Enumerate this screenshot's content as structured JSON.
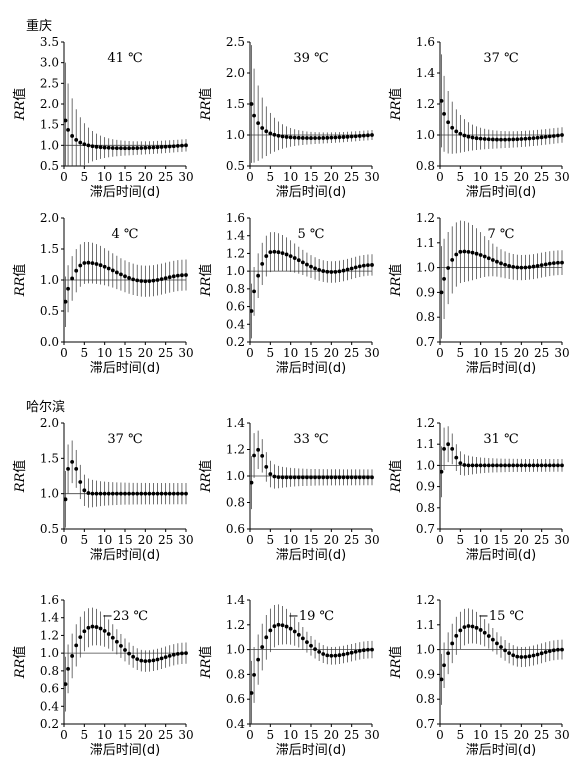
{
  "cities": [
    {
      "name": "重庆",
      "panels": [
        {
          "title": "41 ℃",
          "ylim": [
            0.5,
            3.5
          ],
          "yticks": [
            "0.5",
            "1.0",
            "1.5",
            "2.0",
            "2.5",
            "3.0",
            "3.5"
          ],
          "yvals": [
            0.5,
            1.0,
            1.5,
            2.0,
            2.5,
            3.0,
            3.5
          ],
          "shape": "heat",
          "peak": 1.6,
          "bump": 0,
          "trough": -0.07,
          "ci0": 1.4,
          "ciEnd": 0.15,
          "end": 1.0
        },
        {
          "title": "39 ℃",
          "ylim": [
            0.5,
            2.5
          ],
          "yticks": [
            "0.5",
            "1.0",
            "1.5",
            "2.0",
            "2.5"
          ],
          "yvals": [
            0.5,
            1.0,
            1.5,
            2.0,
            2.5
          ],
          "shape": "heat",
          "peak": 1.5,
          "bump": 0,
          "trough": -0.05,
          "ci0": 0.95,
          "ciEnd": 0.08,
          "end": 1.0
        },
        {
          "title": "37 ℃",
          "ylim": [
            0.8,
            1.6
          ],
          "yticks": [
            "0.8",
            "1.0",
            "1.2",
            "1.4",
            "1.6"
          ],
          "yvals": [
            0.8,
            1.0,
            1.2,
            1.4,
            1.6
          ],
          "shape": "heat",
          "peak": 1.22,
          "bump": 0,
          "trough": -0.03,
          "ci0": 0.3,
          "ciEnd": 0.05,
          "end": 1.0
        },
        {
          "title": "4 ℃",
          "ylim": [
            0.0,
            2.0
          ],
          "yticks": [
            "0.0",
            "0.5",
            "1.0",
            "1.5",
            "2.0"
          ],
          "yvals": [
            0.0,
            0.5,
            1.0,
            1.5,
            2.0
          ],
          "shape": "cold",
          "peak": 0.65,
          "bump": 1.28,
          "trough": 0.98,
          "ci0": 0.4,
          "ciEnd": 0.25,
          "end": 1.08
        },
        {
          "title": "5 ℃",
          "ylim": [
            0.2,
            1.6
          ],
          "yticks": [
            "0.2",
            "0.4",
            "0.6",
            "0.8",
            "1.0",
            "1.2",
            "1.4",
            "1.6"
          ],
          "yvals": [
            0.2,
            0.4,
            0.6,
            0.8,
            1.0,
            1.2,
            1.4,
            1.6
          ],
          "shape": "cold",
          "peak": 0.55,
          "bump": 1.22,
          "trough": 0.99,
          "ci0": 0.3,
          "ciEnd": 0.12,
          "end": 1.07
        },
        {
          "title": "7 ℃",
          "ylim": [
            0.7,
            1.2
          ],
          "yticks": [
            "0.7",
            "0.8",
            "0.9",
            "1.0",
            "1.1",
            "1.2"
          ],
          "yvals": [
            0.7,
            0.8,
            0.9,
            1.0,
            1.1,
            1.2
          ],
          "shape": "cold",
          "peak": 0.9,
          "bump": 1.065,
          "trough": 1.0,
          "ci0": 0.18,
          "ciEnd": 0.05,
          "end": 1.02
        }
      ]
    },
    {
      "name": "哈尔滨",
      "panels": [
        {
          "title": "37 ℃",
          "ylim": [
            0.5,
            2.0
          ],
          "yticks": [
            "0.5",
            "1.0",
            "1.5",
            "2.0"
          ],
          "yvals": [
            0.5,
            1.0,
            1.5,
            2.0
          ],
          "shape": "harbin-heat",
          "peak": 1.45,
          "bump": 0,
          "trough": 0,
          "ci0": 0.4,
          "ciEnd": 0.15,
          "end": 1.0
        },
        {
          "title": "33 ℃",
          "ylim": [
            0.6,
            1.4
          ],
          "yticks": [
            "0.6",
            "0.8",
            "1.0",
            "1.2",
            "1.4"
          ],
          "yvals": [
            0.6,
            0.8,
            1.0,
            1.2,
            1.4
          ],
          "shape": "harbin-heat",
          "peak": 1.2,
          "bump": 0,
          "trough": 0,
          "ci0": 0.2,
          "ciEnd": 0.06,
          "end": 0.99
        },
        {
          "title": "31 ℃",
          "ylim": [
            0.7,
            1.2
          ],
          "yticks": [
            "0.7",
            "0.8",
            "0.9",
            "1.0",
            "1.1",
            "1.2"
          ],
          "yvals": [
            0.7,
            0.8,
            0.9,
            1.0,
            1.1,
            1.2
          ],
          "shape": "harbin-heat",
          "peak": 1.1,
          "bump": 0,
          "trough": 0,
          "ci0": 0.12,
          "ciEnd": 0.03,
          "end": 1.0
        },
        {
          "title": "−23 ℃",
          "ylim": [
            0.2,
            1.6
          ],
          "yticks": [
            "0.2",
            "0.4",
            "0.6",
            "0.8",
            "1.0",
            "1.2",
            "1.4",
            "1.6"
          ],
          "yvals": [
            0.2,
            0.4,
            0.6,
            0.8,
            1.0,
            1.2,
            1.4,
            1.6
          ],
          "shape": "harbin-cold",
          "peak": 0.65,
          "bump": 1.3,
          "trough": 0.91,
          "ci0": 0.3,
          "ciEnd": 0.12,
          "end": 1.0
        },
        {
          "title": "−19 ℃",
          "ylim": [
            0.4,
            1.4
          ],
          "yticks": [
            "0.4",
            "0.6",
            "0.8",
            "1.0",
            "1.2",
            "1.4"
          ],
          "yvals": [
            0.4,
            0.6,
            0.8,
            1.0,
            1.2,
            1.4
          ],
          "shape": "harbin-cold",
          "peak": 0.65,
          "bump": 1.2,
          "trough": 0.95,
          "ci0": 0.25,
          "ciEnd": 0.07,
          "end": 1.0
        },
        {
          "title": "−15 ℃",
          "ylim": [
            0.7,
            1.2
          ],
          "yticks": [
            "0.7",
            "0.8",
            "0.9",
            "1.0",
            "1.1",
            "1.2"
          ],
          "yvals": [
            0.7,
            0.8,
            0.9,
            1.0,
            1.1,
            1.2
          ],
          "shape": "harbin-cold",
          "peak": 0.88,
          "bump": 1.095,
          "trough": 0.97,
          "ci0": 0.1,
          "ciEnd": 0.04,
          "end": 1.0
        }
      ]
    }
  ],
  "xlabel": "滞后时间(d)",
  "ylabel": "RR值",
  "xticks": [
    0,
    5,
    10,
    15,
    20,
    25,
    30
  ],
  "chart_data": [
    {
      "type": "scatter",
      "title": "41 ℃",
      "xlabel": "滞后时间(d)",
      "ylabel": "RR值",
      "ylim": [
        0.5,
        3.5
      ],
      "x": [
        0,
        1,
        2,
        3,
        4,
        5,
        6,
        7,
        8,
        10,
        15,
        20,
        25,
        30
      ],
      "values": [
        1.6,
        1.45,
        1.2,
        1.12,
        1.07,
        1.03,
        1.0,
        0.98,
        0.97,
        0.95,
        0.93,
        0.94,
        0.96,
        1.0
      ]
    },
    {
      "type": "scatter",
      "title": "39 ℃",
      "xlabel": "滞后时间(d)",
      "ylabel": "RR值",
      "ylim": [
        0.5,
        2.5
      ],
      "x": [
        0,
        1,
        2,
        3,
        4,
        5,
        6,
        7,
        8,
        10,
        15,
        20,
        25,
        30
      ],
      "values": [
        1.5,
        1.48,
        1.25,
        1.14,
        1.09,
        1.05,
        1.02,
        1.0,
        0.99,
        0.97,
        0.96,
        0.96,
        0.97,
        1.0
      ]
    },
    {
      "type": "scatter",
      "title": "37 ℃",
      "xlabel": "滞后时间(d)",
      "ylabel": "RR值",
      "ylim": [
        0.8,
        1.6
      ],
      "x": [
        0,
        1,
        2,
        3,
        4,
        5,
        6,
        7,
        8,
        10,
        15,
        20,
        25,
        30
      ],
      "values": [
        1.22,
        1.2,
        1.12,
        1.08,
        1.05,
        1.03,
        1.02,
        1.0,
        0.99,
        0.98,
        0.97,
        0.97,
        0.98,
        1.0
      ]
    },
    {
      "type": "scatter",
      "title": "4 ℃",
      "xlabel": "滞后时间(d)",
      "ylabel": "RR值",
      "ylim": [
        0.0,
        2.0
      ],
      "x": [
        0,
        1,
        2,
        3,
        4,
        5,
        6,
        7,
        8,
        10,
        15,
        20,
        25,
        30
      ],
      "values": [
        0.65,
        0.88,
        1.1,
        1.2,
        1.27,
        1.28,
        1.28,
        1.27,
        1.25,
        1.2,
        1.05,
        0.98,
        1.02,
        1.08
      ]
    },
    {
      "type": "scatter",
      "title": "5 ℃",
      "xlabel": "滞后时间(d)",
      "ylabel": "RR值",
      "ylim": [
        0.2,
        1.6
      ],
      "x": [
        0,
        1,
        2,
        3,
        4,
        5,
        6,
        7,
        8,
        10,
        15,
        20,
        25,
        30
      ],
      "values": [
        0.55,
        0.75,
        0.95,
        1.1,
        1.18,
        1.22,
        1.22,
        1.21,
        1.2,
        1.15,
        1.04,
        0.99,
        1.02,
        1.07
      ]
    },
    {
      "type": "scatter",
      "title": "7 ℃",
      "xlabel": "滞后时间(d)",
      "ylabel": "RR值",
      "ylim": [
        0.7,
        1.2
      ],
      "x": [
        0,
        1,
        2,
        3,
        4,
        5,
        6,
        7,
        8,
        10,
        15,
        20,
        25,
        30
      ],
      "values": [
        0.9,
        0.98,
        1.02,
        1.05,
        1.06,
        1.065,
        1.065,
        1.06,
        1.05,
        1.04,
        1.01,
        1.0,
        1.01,
        1.02
      ]
    },
    {
      "type": "scatter",
      "title": "37 ℃",
      "xlabel": "滞后时间(d)",
      "ylabel": "RR值",
      "ylim": [
        0.5,
        2.0
      ],
      "x": [
        0,
        1,
        2,
        3,
        4,
        5,
        6,
        7,
        8,
        10,
        15,
        20,
        25,
        30
      ],
      "values": [
        0.92,
        1.3,
        1.45,
        1.35,
        1.2,
        1.12,
        1.05,
        1.02,
        1.0,
        1.0,
        1.0,
        1.0,
        1.0,
        1.0
      ]
    },
    {
      "type": "scatter",
      "title": "33 ℃",
      "xlabel": "滞后时间(d)",
      "ylabel": "RR值",
      "ylim": [
        0.6,
        1.4
      ],
      "x": [
        0,
        1,
        2,
        3,
        4,
        5,
        6,
        7,
        8,
        10,
        15,
        20,
        25,
        30
      ],
      "values": [
        0.95,
        1.15,
        1.2,
        1.17,
        1.1,
        1.05,
        1.02,
        1.0,
        0.99,
        0.99,
        0.99,
        0.99,
        0.99,
        0.99
      ]
    },
    {
      "type": "scatter",
      "title": "31 ℃",
      "xlabel": "滞后时间(d)",
      "ylabel": "RR值",
      "ylim": [
        0.7,
        1.2
      ],
      "x": [
        0,
        1,
        2,
        3,
        4,
        5,
        6,
        7,
        8,
        10,
        15,
        20,
        25,
        30
      ],
      "values": [
        0.97,
        1.07,
        1.1,
        1.08,
        1.05,
        1.02,
        1.01,
        1.0,
        1.0,
        1.0,
        1.0,
        1.0,
        1.0,
        1.0
      ]
    },
    {
      "type": "scatter",
      "title": "−23 ℃",
      "xlabel": "滞后时间(d)",
      "ylabel": "RR值",
      "ylim": [
        0.2,
        1.6
      ],
      "x": [
        0,
        1,
        2,
        3,
        4,
        5,
        6,
        7,
        8,
        10,
        15,
        20,
        25,
        30
      ],
      "values": [
        0.65,
        0.75,
        0.92,
        1.05,
        1.15,
        1.22,
        1.28,
        1.3,
        1.28,
        1.2,
        1.0,
        0.91,
        0.93,
        1.0
      ]
    },
    {
      "type": "scatter",
      "title": "−19 ℃",
      "xlabel": "滞后时间(d)",
      "ylabel": "RR值",
      "ylim": [
        0.4,
        1.4
      ],
      "x": [
        0,
        1,
        2,
        3,
        4,
        5,
        6,
        7,
        8,
        10,
        15,
        20,
        25,
        30
      ],
      "values": [
        0.65,
        0.8,
        0.95,
        1.05,
        1.12,
        1.17,
        1.2,
        1.2,
        1.18,
        1.12,
        1.0,
        0.95,
        0.96,
        1.0
      ]
    },
    {
      "type": "scatter",
      "title": "−15 ℃",
      "xlabel": "滞后时间(d)",
      "ylabel": "RR值",
      "ylim": [
        0.7,
        1.2
      ],
      "x": [
        0,
        1,
        2,
        3,
        4,
        5,
        6,
        7,
        8,
        10,
        15,
        20,
        25,
        30
      ],
      "values": [
        0.88,
        0.94,
        1.0,
        1.04,
        1.07,
        1.085,
        1.095,
        1.095,
        1.09,
        1.07,
        1.01,
        0.97,
        0.98,
        1.0
      ]
    }
  ]
}
